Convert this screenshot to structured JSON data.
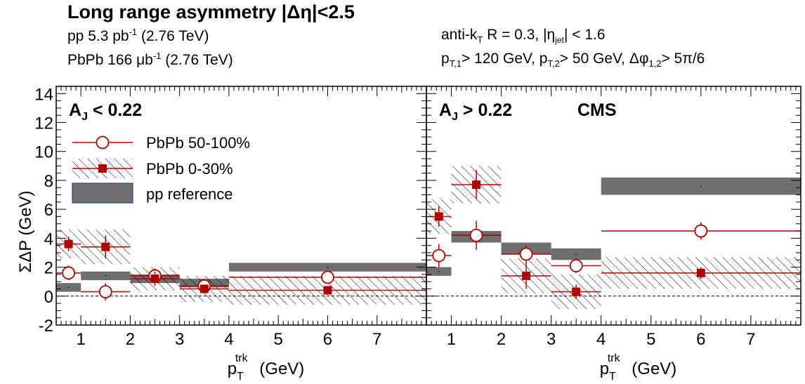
{
  "header": {
    "title": "Long range asymmetry |Δη|<2.5",
    "lumi_pp": "pp 5.3 pb⁻¹ (2.76 TeV)",
    "lumi_pbpb": "PbPb 166 μb⁻¹ (2.76 TeV)",
    "jet_def": "anti-kT R = 0.3, |ηjet| < 1.6",
    "jet_cuts": "pT,1> 120 GeV, pT,2> 50 GeV, Δφ1,2> 5π/6"
  },
  "chart_data": [
    {
      "type": "scatter",
      "panel_label": "AJ < 0.22",
      "xlabel": "p_T^trk (GeV)",
      "ylabel": "ΣΔP (GeV)",
      "xlim": [
        0.5,
        8.0
      ],
      "ylim": [
        -2,
        14.5
      ],
      "x_ticks": [
        1,
        2,
        3,
        4,
        5,
        6,
        7
      ],
      "y_ticks": [
        -2,
        0,
        2,
        4,
        6,
        8,
        10,
        12,
        14
      ],
      "legend": [
        {
          "label": "PbPb 50-100%",
          "marker": "open-circle",
          "color": "#b00000"
        },
        {
          "label": "PbPb 0-30%",
          "marker": "filled-square-hatched",
          "color": "#b00000"
        },
        {
          "label": "pp reference",
          "marker": "gray-box",
          "color": "#666666"
        }
      ],
      "bins": [
        [
          0.5,
          1.0
        ],
        [
          1.0,
          2.0
        ],
        [
          2.0,
          3.0
        ],
        [
          3.0,
          4.0
        ],
        [
          4.0,
          8.0
        ]
      ],
      "bin_centers": [
        0.75,
        1.5,
        2.5,
        3.5,
        6.0
      ],
      "series": [
        {
          "name": "PbPb 50-100%",
          "values": [
            1.6,
            0.3,
            1.4,
            0.7,
            1.3
          ],
          "stat_err": [
            0.5,
            0.6,
            0.5,
            0.4,
            0.4
          ]
        },
        {
          "name": "PbPb 0-30%",
          "values": [
            3.6,
            3.4,
            1.2,
            0.5,
            0.4
          ],
          "stat_err": [
            0.5,
            0.8,
            0.5,
            0.3,
            0.3
          ],
          "sys_err": [
            1.0,
            1.2,
            0.8,
            0.9,
            1.0
          ]
        },
        {
          "name": "pp reference",
          "values": [
            0.6,
            1.4,
            1.2,
            0.9,
            2.0
          ],
          "sys_err": [
            0.3,
            0.3,
            0.3,
            0.3,
            0.3
          ]
        }
      ]
    },
    {
      "type": "scatter",
      "panel_label": "AJ > 0.22",
      "experiment": "CMS",
      "xlabel": "p_T^trk (GeV)",
      "xlim": [
        0.5,
        8.0
      ],
      "ylim": [
        -2,
        14.5
      ],
      "x_ticks": [
        1,
        2,
        3,
        4,
        5,
        6,
        7
      ],
      "bins": [
        [
          0.5,
          1.0
        ],
        [
          1.0,
          2.0
        ],
        [
          2.0,
          3.0
        ],
        [
          3.0,
          4.0
        ],
        [
          4.0,
          8.0
        ]
      ],
      "bin_centers": [
        0.75,
        1.5,
        2.5,
        3.5,
        6.0
      ],
      "series": [
        {
          "name": "PbPb 50-100%",
          "values": [
            2.8,
            4.2,
            2.9,
            2.1,
            4.5
          ],
          "stat_err": [
            0.8,
            1.0,
            0.6,
            0.5,
            0.6
          ]
        },
        {
          "name": "PbPb 0-30%",
          "values": [
            5.5,
            7.7,
            1.4,
            0.3,
            1.6
          ],
          "stat_err": [
            0.7,
            1.0,
            0.9,
            0.5,
            0.4
          ],
          "sys_err": [
            1.2,
            1.3,
            1.2,
            1.2,
            1.1
          ]
        },
        {
          "name": "pp reference",
          "values": [
            1.7,
            4.1,
            3.3,
            2.9,
            7.6
          ],
          "sys_err": [
            0.3,
            0.4,
            0.4,
            0.4,
            0.6
          ]
        }
      ]
    }
  ]
}
